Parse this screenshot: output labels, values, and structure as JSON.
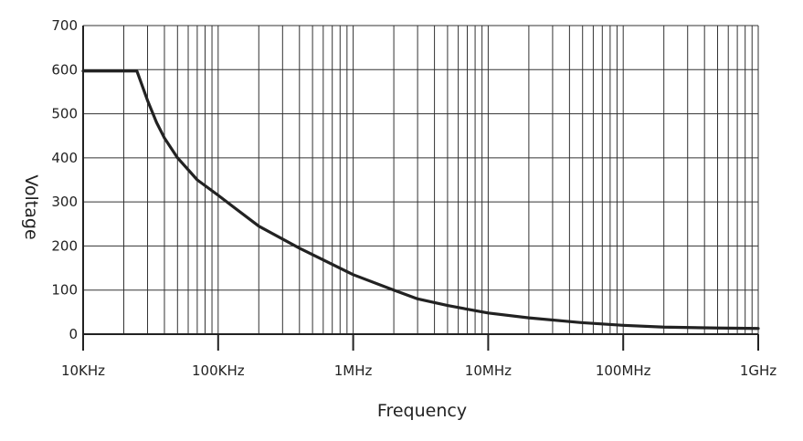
{
  "chart_data": {
    "type": "line",
    "xlabel": "Frequency",
    "ylabel": "Voltage",
    "x_scale": "log",
    "xlim": [
      "10KHz",
      "1GHz"
    ],
    "xlim_hz": [
      10000,
      1000000000
    ],
    "ylim": [
      0,
      700
    ],
    "grid": true,
    "x_ticks": [
      {
        "value": 10000,
        "label": "10KHz"
      },
      {
        "value": 100000,
        "label": "100KHz"
      },
      {
        "value": 1000000,
        "label": "1MHz"
      },
      {
        "value": 10000000,
        "label": "10MHz"
      },
      {
        "value": 100000000,
        "label": "100MHz"
      },
      {
        "value": 1000000000,
        "label": "1GHz"
      }
    ],
    "y_ticks": [
      0,
      100,
      200,
      300,
      400,
      500,
      600,
      700
    ],
    "series": [
      {
        "points": [
          [
            10000,
            597
          ],
          [
            25000,
            597
          ],
          [
            30000,
            530
          ],
          [
            35000,
            480
          ],
          [
            40000,
            445
          ],
          [
            50000,
            400
          ],
          [
            70000,
            350
          ],
          [
            100000,
            315
          ],
          [
            200000,
            245
          ],
          [
            400000,
            195
          ],
          [
            1000000,
            135
          ],
          [
            2000000,
            100
          ],
          [
            3000000,
            80
          ],
          [
            5000000,
            65
          ],
          [
            10000000,
            48
          ],
          [
            20000000,
            37
          ],
          [
            50000000,
            26
          ],
          [
            100000000,
            20
          ],
          [
            200000000,
            16
          ],
          [
            500000000,
            14
          ],
          [
            1000000000,
            13
          ]
        ],
        "color": "#222222"
      }
    ]
  }
}
